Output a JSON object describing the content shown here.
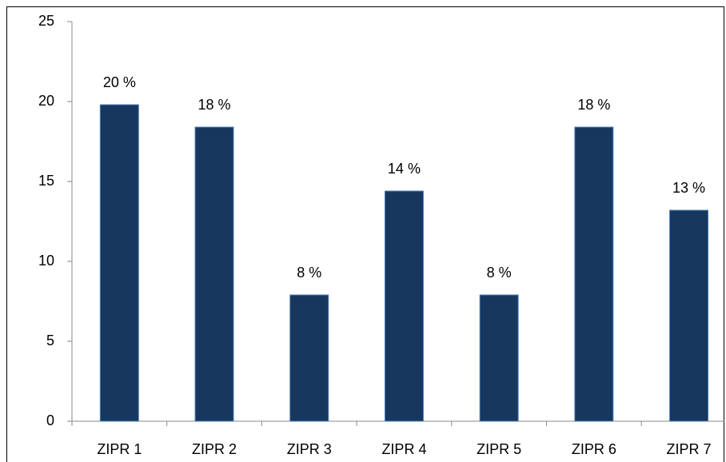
{
  "chart_data": {
    "type": "bar",
    "categories": [
      "ZIPR 1",
      "ZIPR 2",
      "ZIPR 3",
      "ZIPR 4",
      "ZIPR 5",
      "ZIPR 6",
      "ZIPR 7"
    ],
    "values": [
      19.8,
      18.4,
      7.9,
      14.4,
      7.9,
      18.4,
      13.2
    ],
    "value_labels": [
      "20 %",
      "18 %",
      "8 %",
      "14 %",
      "8 %",
      "18 %",
      "13 %"
    ],
    "color": "#17375e",
    "ylim": [
      0,
      25
    ],
    "yticks": [
      0,
      5,
      10,
      15,
      20,
      25
    ],
    "grid": false
  }
}
